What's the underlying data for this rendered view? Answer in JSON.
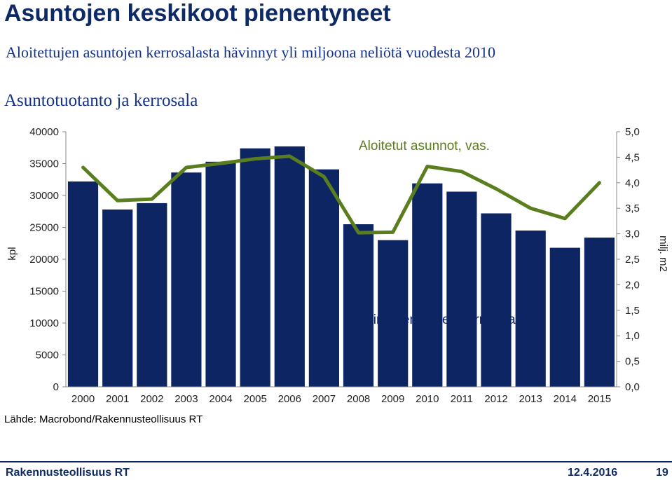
{
  "header": {
    "title": "Asuntojen keskikoot pienentyneet",
    "subtitle": "Aloitettujen asuntojen kerrosalasta hävinnyt yli miljoona neliötä vuodesta 2010",
    "chart_title": "Asuntotuotanto ja kerrosala"
  },
  "source": "Lähde: Macrobond/Rakennusteollisuus RT",
  "footer": {
    "org": "Rakennusteollisuus RT",
    "date": "12.4.2016",
    "page": "19"
  },
  "colors": {
    "bar": "#0d2562",
    "line": "#5a7e1d",
    "annotation_bars": "#5a7e1d",
    "annotation_line": "#0d2562"
  },
  "chart_data": {
    "type": "bar",
    "title": "Asuntotuotanto ja kerrosala",
    "categories": [
      "2000",
      "2001",
      "2002",
      "2003",
      "2004",
      "2005",
      "2006",
      "2007",
      "2008",
      "2009",
      "2010",
      "2011",
      "2012",
      "2013",
      "2014",
      "2015"
    ],
    "left_axis": {
      "label": "kpl",
      "ylim": [
        0,
        40000
      ],
      "ticks": [
        "0",
        "5000",
        "10000",
        "15000",
        "20000",
        "25000",
        "30000",
        "35000",
        "40000"
      ]
    },
    "right_axis": {
      "label": "milj. m2",
      "ylim": [
        0,
        5
      ],
      "ticks": [
        "0,0",
        "0,5",
        "1,0",
        "1,5",
        "2,0",
        "2,5",
        "3,0",
        "3,5",
        "4,0",
        "4,5",
        "5,0"
      ]
    },
    "series": [
      {
        "name": "Aloitetut asunnot, vas.",
        "type": "bar",
        "axis": "left",
        "values": [
          32200,
          27800,
          28800,
          33600,
          35300,
          37400,
          37700,
          34100,
          25500,
          23000,
          31900,
          30600,
          27200,
          24500,
          21800,
          23400
        ]
      },
      {
        "name": "Asuinrakennusten kerrosala, oik.",
        "type": "line",
        "axis": "right",
        "values": [
          4.3,
          3.65,
          3.68,
          4.3,
          4.38,
          4.47,
          4.52,
          4.12,
          3.02,
          3.03,
          4.32,
          4.22,
          3.88,
          3.5,
          3.3,
          4.0
        ]
      }
    ],
    "grid": false,
    "legend": "annotations"
  }
}
